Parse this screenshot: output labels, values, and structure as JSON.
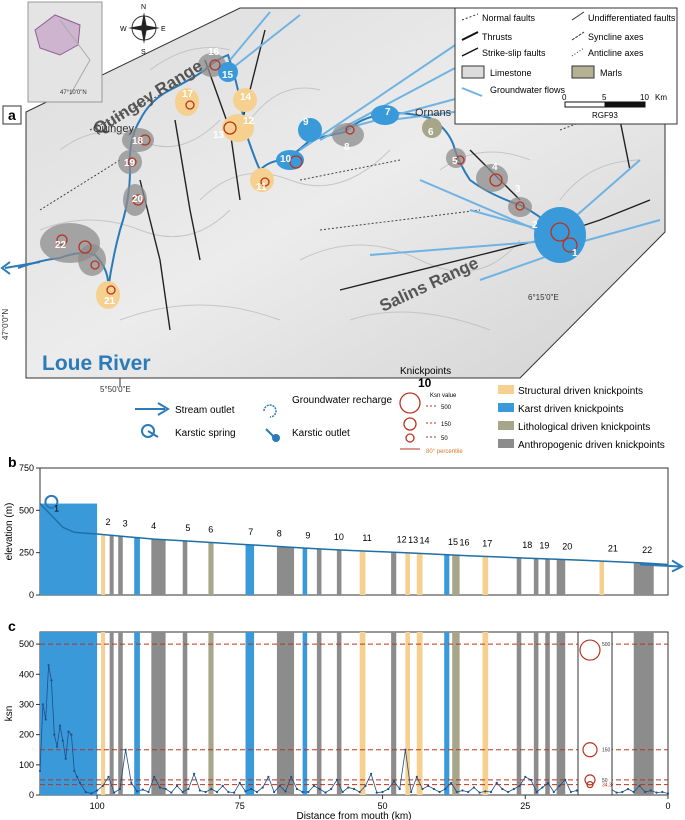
{
  "panel_a": {
    "letter": "a",
    "inset_label": "47°10'0\"N",
    "compass": {
      "n": "N",
      "s": "S",
      "e": "E",
      "w": "W"
    },
    "coord_labels": {
      "lat_47": "47°0'0\"N",
      "lon_550": "5°50'0\"E",
      "lon_615": "6°15'0\"E"
    },
    "place_labels": {
      "quingey_range": "Quingey Range",
      "quingey": "Quingey",
      "ornans": "Ornans",
      "salins_range": "Salins Range",
      "loue_river": "Loue River"
    },
    "legend": {
      "normal_faults": "Normal faults",
      "undiff_faults": "Undifferentiated faults",
      "thrusts": "Thrusts",
      "syncline": "Syncline axes",
      "strike_slip": "Strike-slip faults",
      "anticline": "Anticline axes",
      "limestone": "Limestone",
      "marls": "Marls",
      "groundwater": "Groundwater flows",
      "scale_0": "0",
      "scale_5": "5",
      "scale_10": "10",
      "scale_unit": "Km",
      "crs": "RGF93"
    },
    "knickpoint_numbers": [
      "1",
      "2",
      "3",
      "4",
      "5",
      "6",
      "7",
      "8",
      "9",
      "10",
      "11",
      "12",
      "13",
      "14",
      "15",
      "16",
      "17",
      "18",
      "19",
      "20",
      "21",
      "22"
    ]
  },
  "legend_bottom": {
    "stream_outlet": "Stream outlet",
    "karstic_spring": "Karstic spring",
    "groundwater_recharge": "Groundwater recharge",
    "karstic_outlet": "Karstic outlet",
    "knickpoints_title": "Knickpoints",
    "knickpoints_count": "10",
    "ksn_value": "Ksn value",
    "ksn_500": "500",
    "ksn_150": "150",
    "ksn_50": "50",
    "percentile": "80° percentile",
    "structural": "Structural driven knickpoints",
    "karst": "Karst driven knickpoints",
    "lithological": "Lithological driven knickpoints",
    "anthropogenic": "Anthropogenic driven knickpoints",
    "colors": {
      "structural": "#f6d08f",
      "karst": "#3a9ad9",
      "lithological": "#a7a58a",
      "anthropogenic": "#8c8c8c",
      "river": "#2b7bb9",
      "profile": "#1f6fa8",
      "threshold": "#b8341f"
    }
  },
  "chart_data": [
    {
      "type": "area",
      "panel": "b",
      "ylabel": "elevation (m)",
      "ylim": [
        0,
        750
      ],
      "yticks": [
        "0",
        "250",
        "500",
        "750"
      ],
      "xlim": [
        110,
        0
      ],
      "profile": {
        "x": [
          110,
          108,
          106,
          104,
          102,
          100,
          95,
          90,
          85,
          80,
          75,
          70,
          65,
          60,
          55,
          50,
          45,
          40,
          35,
          30,
          25,
          20,
          15,
          10,
          5,
          0
        ],
        "y": [
          540,
          470,
          400,
          370,
          365,
          360,
          345,
          330,
          320,
          310,
          300,
          290,
          280,
          270,
          262,
          255,
          248,
          240,
          232,
          225,
          218,
          212,
          205,
          198,
          190,
          180
        ]
      },
      "knickpoint_labels": [
        {
          "label": "1",
          "x": 107
        },
        {
          "label": "2",
          "x": 98
        },
        {
          "label": "3",
          "x": 95
        },
        {
          "label": "4",
          "x": 90
        },
        {
          "label": "5",
          "x": 84
        },
        {
          "label": "6",
          "x": 80
        },
        {
          "label": "7",
          "x": 73
        },
        {
          "label": "8",
          "x": 68
        },
        {
          "label": "9",
          "x": 63
        },
        {
          "label": "10",
          "x": 58
        },
        {
          "label": "11",
          "x": 53
        },
        {
          "label": "12",
          "x": 47
        },
        {
          "label": "13",
          "x": 45
        },
        {
          "label": "14",
          "x": 43
        },
        {
          "label": "15",
          "x": 38
        },
        {
          "label": "16",
          "x": 36
        },
        {
          "label": "17",
          "x": 32
        },
        {
          "label": "18",
          "x": 25
        },
        {
          "label": "19",
          "x": 22
        },
        {
          "label": "20",
          "x": 18
        },
        {
          "label": "21",
          "x": 10
        },
        {
          "label": "22",
          "x": 4
        }
      ],
      "bands": [
        {
          "x0": 110,
          "x1": 100,
          "class": "karst"
        },
        {
          "x0": 99.3,
          "x1": 98.6,
          "class": "structural"
        },
        {
          "x0": 97.8,
          "x1": 97.1,
          "class": "anthropogenic"
        },
        {
          "x0": 96.3,
          "x1": 95.5,
          "class": "anthropogenic"
        },
        {
          "x0": 93.5,
          "x1": 92.5,
          "class": "karst"
        },
        {
          "x0": 90.5,
          "x1": 88,
          "class": "anthropogenic"
        },
        {
          "x0": 85,
          "x1": 84.2,
          "class": "anthropogenic"
        },
        {
          "x0": 80.5,
          "x1": 79.6,
          "class": "lithological"
        },
        {
          "x0": 74,
          "x1": 72.5,
          "class": "karst"
        },
        {
          "x0": 68.5,
          "x1": 65.5,
          "class": "anthropogenic"
        },
        {
          "x0": 64,
          "x1": 63.2,
          "class": "karst"
        },
        {
          "x0": 61.5,
          "x1": 60.7,
          "class": "anthropogenic"
        },
        {
          "x0": 58,
          "x1": 57.2,
          "class": "anthropogenic"
        },
        {
          "x0": 54,
          "x1": 53,
          "class": "structural"
        },
        {
          "x0": 48.5,
          "x1": 47.6,
          "class": "anthropogenic"
        },
        {
          "x0": 46,
          "x1": 45.2,
          "class": "structural"
        },
        {
          "x0": 44,
          "x1": 43,
          "class": "structural"
        },
        {
          "x0": 39.2,
          "x1": 38.3,
          "class": "karst"
        },
        {
          "x0": 37.8,
          "x1": 36.5,
          "class": "lithological"
        },
        {
          "x0": 32.5,
          "x1": 31.5,
          "class": "structural"
        },
        {
          "x0": 26.5,
          "x1": 25.7,
          "class": "anthropogenic"
        },
        {
          "x0": 23.5,
          "x1": 22.7,
          "class": "anthropogenic"
        },
        {
          "x0": 21.5,
          "x1": 20.7,
          "class": "anthropogenic"
        },
        {
          "x0": 19.5,
          "x1": 18,
          "class": "anthropogenic"
        },
        {
          "x0": 12,
          "x1": 11.2,
          "class": "structural"
        },
        {
          "x0": 6,
          "x1": 2.5,
          "class": "anthropogenic"
        }
      ]
    },
    {
      "type": "line",
      "panel": "c",
      "ylabel": "ksn",
      "xlabel": "Distance from mouth (km)",
      "ylim": [
        0,
        540
      ],
      "yticks": [
        "0",
        "100",
        "200",
        "300",
        "400",
        "500"
      ],
      "xlim": [
        110,
        0
      ],
      "xticks": [
        "100",
        "75",
        "50",
        "25",
        "0"
      ],
      "thresholds": [
        {
          "value": 500,
          "label": "500"
        },
        {
          "value": 150,
          "label": "150"
        },
        {
          "value": 50,
          "label": "50"
        },
        {
          "value": 34.3,
          "label": "34.3"
        }
      ],
      "series": [
        {
          "x": [
            110,
            109.5,
            109,
            108.5,
            108,
            107.5,
            107,
            106.5,
            106,
            105.5,
            105,
            104.5,
            104,
            103.5,
            103,
            102,
            101,
            100,
            99,
            98,
            97,
            96,
            95,
            94,
            93,
            92,
            91,
            90,
            89,
            88,
            87,
            86,
            85,
            84,
            83,
            82,
            81,
            80,
            79,
            78,
            77,
            76,
            75,
            74,
            73,
            72,
            71,
            70,
            69,
            68,
            67,
            66,
            65,
            64,
            63,
            62,
            61,
            60,
            59,
            58,
            57,
            56,
            55,
            54,
            53,
            52,
            51,
            50,
            49,
            48,
            47,
            46,
            45,
            44,
            43,
            42,
            41,
            40,
            39,
            38,
            37,
            36,
            35,
            34,
            33,
            32,
            31,
            30,
            29,
            28,
            27,
            26,
            25,
            24,
            23,
            22,
            21,
            20,
            19,
            18,
            17,
            16,
            15,
            14,
            13,
            12,
            11,
            10,
            9,
            8,
            7,
            6,
            5,
            4,
            3,
            2,
            1,
            0
          ],
          "y": [
            80,
            300,
            250,
            430,
            380,
            200,
            160,
            230,
            180,
            120,
            210,
            200,
            80,
            60,
            40,
            10,
            5,
            15,
            30,
            60,
            8,
            20,
            150,
            40,
            12,
            18,
            10,
            60,
            25,
            20,
            8,
            30,
            10,
            20,
            70,
            15,
            10,
            20,
            10,
            30,
            10,
            8,
            40,
            12,
            20,
            10,
            25,
            60,
            10,
            30,
            12,
            60,
            20,
            10,
            10,
            30,
            20,
            8,
            20,
            50,
            10,
            25,
            20,
            10,
            30,
            70,
            8,
            10,
            20,
            45,
            20,
            150,
            10,
            60,
            20,
            30,
            20,
            10,
            20,
            40,
            10,
            15,
            10,
            25,
            8,
            12,
            10,
            40,
            20,
            10,
            20,
            30,
            60,
            50,
            10,
            25,
            40,
            10,
            30,
            50,
            10,
            15,
            8,
            20,
            10,
            30,
            12,
            20,
            8,
            10,
            20,
            10,
            30,
            10,
            15,
            8,
            10,
            5
          ]
        }
      ]
    }
  ]
}
